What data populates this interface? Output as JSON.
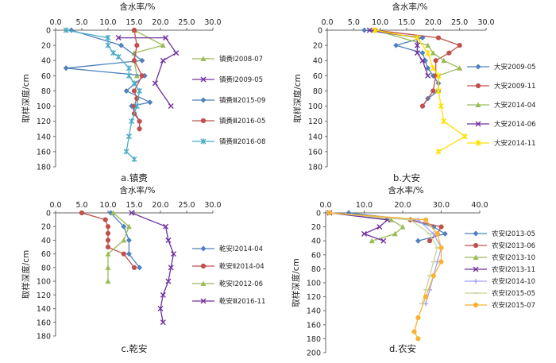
{
  "chart_data": [
    {
      "type": "line",
      "caption": "a.镇赉",
      "xlabel": "含水率/%",
      "ylabel": "取样深度/cm",
      "xlim": [
        0,
        30
      ],
      "xticks": [
        "0.0",
        "5.0",
        "10.0",
        "15.0",
        "20.0",
        "25.0",
        "30.0"
      ],
      "ylim": [
        0,
        180
      ],
      "yticks": [
        "0",
        "20",
        "40",
        "60",
        "80",
        "100",
        "120",
        "140",
        "160",
        "180"
      ],
      "series": [
        {
          "name": "镇赉Ⅰ2008-07",
          "color": "#9BBB59",
          "marker": "triangle",
          "points": [
            [
              15,
              0
            ],
            [
              20.5,
              20
            ],
            [
              15,
              30
            ],
            [
              15,
              40
            ],
            [
              15.5,
              60
            ]
          ]
        },
        {
          "name": "镇赉Ⅰ2009-05",
          "color": "#7030A0",
          "marker": "x",
          "points": [
            [
              12,
              10
            ],
            [
              21,
              10
            ],
            [
              23,
              30
            ],
            [
              20.5,
              40
            ],
            [
              19,
              70
            ],
            [
              22,
              100
            ]
          ]
        },
        {
          "name": "镇赉Ⅲ2015-09",
          "color": "#4F81BD",
          "marker": "diamond",
          "points": [
            [
              3,
              0
            ],
            [
              12.5,
              20
            ],
            [
              16.5,
              40
            ],
            [
              2,
              50
            ],
            [
              17,
              60
            ],
            [
              13.5,
              80
            ],
            [
              18,
              95
            ],
            [
              14.5,
              100
            ],
            [
              16,
              120
            ],
            [
              16,
              130
            ]
          ]
        },
        {
          "name": "镇赉Ⅲ2016-05",
          "color": "#C0504D",
          "marker": "circle",
          "points": [
            [
              15,
              0
            ],
            [
              15.5,
              20
            ],
            [
              15,
              40
            ],
            [
              16.5,
              60
            ],
            [
              15,
              80
            ],
            [
              15.5,
              90
            ],
            [
              15,
              100
            ],
            [
              15,
              110
            ],
            [
              16,
              120
            ],
            [
              16,
              130
            ]
          ]
        },
        {
          "name": "镇赉Ⅲ2016-08",
          "color": "#4BACC6",
          "marker": "star",
          "points": [
            [
              2,
              0
            ],
            [
              10,
              10
            ],
            [
              10,
              20
            ],
            [
              11,
              30
            ],
            [
              12,
              35
            ],
            [
              14,
              50
            ],
            [
              14,
              60
            ],
            [
              15,
              70
            ],
            [
              16,
              80
            ],
            [
              15.5,
              100
            ],
            [
              14.5,
              120
            ],
            [
              14,
              140
            ],
            [
              13.5,
              160
            ],
            [
              15,
              170
            ]
          ]
        }
      ]
    },
    {
      "type": "line",
      "caption": "b.大安",
      "xlabel": "含水率/%",
      "ylabel": "取样深度/cm",
      "xlim": [
        0,
        30
      ],
      "xticks": [
        "0.0",
        "5.0",
        "10.0",
        "15.0",
        "20.0",
        "25.0",
        "30.0"
      ],
      "ylim": [
        0,
        180
      ],
      "yticks": [
        "0",
        "20",
        "40",
        "60",
        "80",
        "100",
        "120",
        "140",
        "160",
        "180"
      ],
      "series": [
        {
          "name": "大安2009-05",
          "color": "#4F81BD",
          "marker": "diamond",
          "points": [
            [
              7,
              0
            ],
            [
              18,
              10
            ],
            [
              13,
              20
            ],
            [
              18,
              30
            ],
            [
              18.5,
              40
            ],
            [
              19,
              50
            ],
            [
              20,
              60
            ],
            [
              21,
              70
            ],
            [
              21,
              80
            ],
            [
              19,
              90
            ],
            [
              18,
              100
            ]
          ]
        },
        {
          "name": "大安2009-11",
          "color": "#C0504D",
          "marker": "circle",
          "points": [
            [
              9,
              0
            ],
            [
              21,
              10
            ],
            [
              25,
              20
            ],
            [
              23,
              30
            ],
            [
              20.5,
              40
            ],
            [
              20.5,
              60
            ],
            [
              20,
              80
            ],
            [
              18,
              100
            ]
          ]
        },
        {
          "name": "大安2014-04",
          "color": "#9BBB59",
          "marker": "triangle",
          "points": [
            [
              9,
              0
            ],
            [
              19,
              20
            ],
            [
              20,
              30
            ],
            [
              22,
              40
            ],
            [
              25,
              50
            ],
            [
              21,
              60
            ],
            [
              21,
              80
            ]
          ]
        },
        {
          "name": "大安2014-06",
          "color": "#7030A0",
          "marker": "x",
          "points": [
            [
              8,
              0
            ],
            [
              17,
              10
            ],
            [
              17,
              20
            ],
            [
              17,
              30
            ],
            [
              18,
              40
            ],
            [
              19,
              60
            ]
          ]
        },
        {
          "name": "大安2014-11",
          "color": "#FFE000",
          "marker": "star",
          "points": [
            [
              9,
              0
            ],
            [
              17,
              10
            ],
            [
              19,
              30
            ],
            [
              20,
              50
            ],
            [
              21,
              60
            ],
            [
              21,
              80
            ],
            [
              21.5,
              100
            ],
            [
              22,
              120
            ],
            [
              26,
              140
            ],
            [
              21,
              160
            ]
          ]
        }
      ]
    },
    {
      "type": "line",
      "caption": "c.乾安",
      "xlabel": "含水率/%",
      "ylabel": "取样深度/cm",
      "xlim": [
        0,
        30
      ],
      "xticks": [
        "0.0",
        "5.0",
        "10.0",
        "15.0",
        "20.0",
        "25.0",
        "30.0"
      ],
      "ylim": [
        0,
        180
      ],
      "yticks": [
        "0",
        "20",
        "40",
        "60",
        "80",
        "100",
        "120",
        "140",
        "160",
        "180"
      ],
      "series": [
        {
          "name": "乾安Ⅰ2014-04",
          "color": "#4F81BD",
          "marker": "diamond",
          "points": [
            [
              10.5,
              0
            ],
            [
              13,
              20
            ],
            [
              14,
              40
            ],
            [
              14,
              60
            ],
            [
              16,
              80
            ]
          ]
        },
        {
          "name": "乾安Ⅱ2014-04",
          "color": "#C0504D",
          "marker": "circle",
          "points": [
            [
              5,
              0
            ],
            [
              9.5,
              10
            ],
            [
              10,
              20
            ],
            [
              10,
              30
            ],
            [
              10,
              40
            ],
            [
              10,
              50
            ],
            [
              13,
              60
            ],
            [
              15,
              80
            ]
          ]
        },
        {
          "name": "乾安Ⅰ2012-06",
          "color": "#9BBB59",
          "marker": "triangle",
          "points": [
            [
              11,
              0
            ],
            [
              14,
              20
            ],
            [
              13,
              40
            ],
            [
              10,
              60
            ],
            [
              10,
              80
            ],
            [
              10,
              100
            ]
          ]
        },
        {
          "name": "乾安Ⅲ2016-11",
          "color": "#7030A0",
          "marker": "x",
          "points": [
            [
              14.5,
              0
            ],
            [
              21,
              20
            ],
            [
              21.5,
              40
            ],
            [
              22.5,
              60
            ],
            [
              22,
              80
            ],
            [
              21.5,
              100
            ],
            [
              20.5,
              120
            ],
            [
              20,
              140
            ],
            [
              20.5,
              160
            ]
          ]
        }
      ]
    },
    {
      "type": "line",
      "caption": "d.农安",
      "xlabel": "含水率/%",
      "ylabel": "取样深度/cm",
      "xlim": [
        0,
        40
      ],
      "xticks": [
        "0.0",
        "10.0",
        "20.0",
        "30.0",
        "40.0"
      ],
      "ylim": [
        0,
        200
      ],
      "yticks": [
        "0",
        "20",
        "40",
        "60",
        "80",
        "100",
        "120",
        "140",
        "160",
        "180",
        "200"
      ],
      "series": [
        {
          "name": "农安Ⅰ2013-05",
          "color": "#4F81BD",
          "marker": "diamond",
          "points": [
            [
              6,
              0
            ],
            [
              22,
              10
            ],
            [
              28,
              20
            ],
            [
              31,
              30
            ],
            [
              24,
              40
            ]
          ]
        },
        {
          "name": "农安Ⅰ2013-06",
          "color": "#C0504D",
          "marker": "circle",
          "points": [
            [
              1,
              0
            ],
            [
              22,
              10
            ],
            [
              30,
              20
            ],
            [
              29,
              30
            ],
            [
              27,
              40
            ]
          ]
        },
        {
          "name": "农安Ⅰ2013-10",
          "color": "#9BBB59",
          "marker": "triangle",
          "points": [
            [
              1,
              0
            ],
            [
              17,
              10
            ],
            [
              20,
              20
            ],
            [
              18,
              30
            ],
            [
              12,
              40
            ]
          ]
        },
        {
          "name": "农安Ⅰ2013-11",
          "color": "#7030A0",
          "marker": "x",
          "points": [
            [
              1,
              0
            ],
            [
              16,
              10
            ],
            [
              14,
              20
            ],
            [
              10,
              30
            ],
            [
              15,
              40
            ]
          ]
        },
        {
          "name": "农安Ⅰ2014-10",
          "color": "#A5A5FF",
          "marker": "plus",
          "points": [
            [
              1,
              0
            ],
            [
              24,
              10
            ],
            [
              28,
              30
            ],
            [
              30,
              50
            ],
            [
              29,
              70
            ],
            [
              28,
              90
            ],
            [
              27,
              110
            ],
            [
              26,
              130
            ]
          ]
        },
        {
          "name": "农安Ⅰ2015-05",
          "color": "#C3D69B",
          "marker": "dash",
          "points": [
            [
              1,
              0
            ],
            [
              22,
              10
            ],
            [
              27,
              30
            ],
            [
              29,
              50
            ],
            [
              28,
              70
            ],
            [
              27,
              90
            ],
            [
              26,
              110
            ],
            [
              25,
              130
            ]
          ]
        },
        {
          "name": "农安Ⅰ2015-07",
          "color": "#F9B233",
          "marker": "circle",
          "points": [
            [
              1,
              0
            ],
            [
              26,
              10
            ],
            [
              29,
              30
            ],
            [
              30,
              50
            ],
            [
              30,
              70
            ],
            [
              28,
              90
            ],
            [
              26,
              120
            ],
            [
              24,
              150
            ],
            [
              23,
              170
            ],
            [
              24,
              180
            ]
          ]
        }
      ]
    }
  ]
}
